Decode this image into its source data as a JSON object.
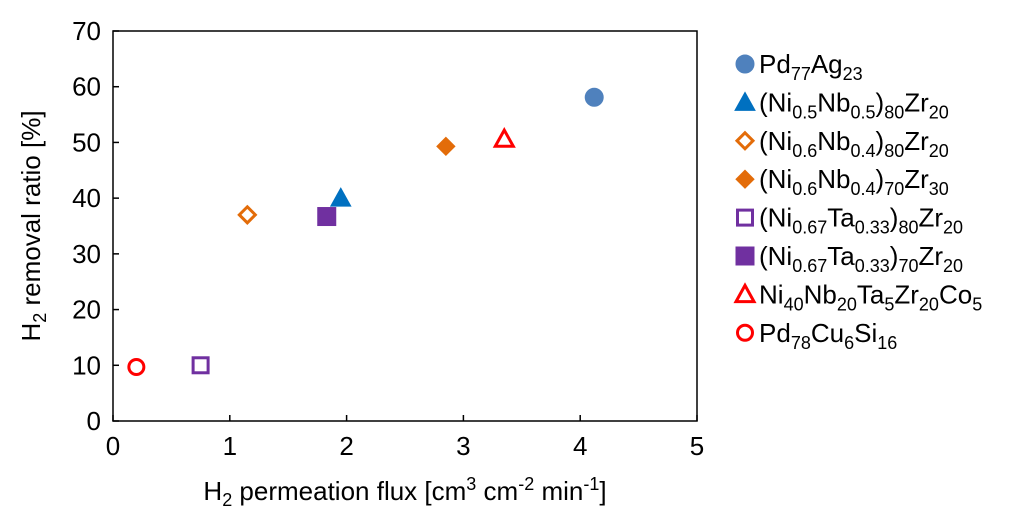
{
  "chart_data": {
    "type": "scatter",
    "title": "",
    "xlabel": {
      "base": "H",
      "sub": "2",
      "text1": " permeation flux [cm",
      "sup1": "3",
      "text2": " cm",
      "sup2": "-2",
      "text3": " min",
      "sup3": "-1",
      "text4": "]"
    },
    "ylabel": {
      "base": "H",
      "sub": "2",
      "text1": " removal ratio [%]"
    },
    "xlim": [
      0,
      5
    ],
    "ylim": [
      0,
      70
    ],
    "xticks": [
      "0",
      "1",
      "2",
      "3",
      "4",
      "5"
    ],
    "yticks": [
      "0",
      "10",
      "20",
      "30",
      "40",
      "50",
      "60",
      "70"
    ],
    "grid": false,
    "legend_position": "right",
    "series": [
      {
        "name_parts": [
          [
            "Pd",
            false
          ],
          [
            "77",
            true
          ],
          [
            "Ag",
            false
          ],
          [
            "23",
            true
          ]
        ],
        "marker": "circle",
        "filled": true,
        "color": "#4f81bd",
        "points": [
          [
            4.12,
            58.1
          ]
        ]
      },
      {
        "name_parts": [
          [
            "(Ni",
            false
          ],
          [
            "0.5",
            true
          ],
          [
            "Nb",
            false
          ],
          [
            "0.5",
            true
          ],
          [
            ")",
            false
          ],
          [
            "80",
            true
          ],
          [
            "Zr",
            false
          ],
          [
            "20",
            true
          ]
        ],
        "marker": "triangle",
        "filled": true,
        "color": "#0070c0",
        "points": [
          [
            1.95,
            40.0
          ]
        ]
      },
      {
        "name_parts": [
          [
            "(Ni",
            false
          ],
          [
            "0.6",
            true
          ],
          [
            "Nb",
            false
          ],
          [
            "0.4",
            true
          ],
          [
            ")",
            false
          ],
          [
            "80",
            true
          ],
          [
            "Zr",
            false
          ],
          [
            "20",
            true
          ]
        ],
        "marker": "diamond",
        "filled": false,
        "color": "#e36c09",
        "points": [
          [
            1.15,
            37.0
          ]
        ]
      },
      {
        "name_parts": [
          [
            "(Ni",
            false
          ],
          [
            "0.6",
            true
          ],
          [
            "Nb",
            false
          ],
          [
            "0.4",
            true
          ],
          [
            ")",
            false
          ],
          [
            "70",
            true
          ],
          [
            "Zr",
            false
          ],
          [
            "30",
            true
          ]
        ],
        "marker": "diamond",
        "filled": true,
        "color": "#e36c09",
        "points": [
          [
            2.85,
            49.3
          ]
        ]
      },
      {
        "name_parts": [
          [
            "(Ni",
            false
          ],
          [
            "0.67",
            true
          ],
          [
            "Ta",
            false
          ],
          [
            "0.33",
            true
          ],
          [
            ")",
            false
          ],
          [
            "80",
            true
          ],
          [
            "Zr",
            false
          ],
          [
            "20",
            true
          ]
        ],
        "marker": "square",
        "filled": false,
        "color": "#7030a0",
        "points": [
          [
            0.75,
            10.0
          ]
        ]
      },
      {
        "name_parts": [
          [
            "(Ni",
            false
          ],
          [
            "0.67",
            true
          ],
          [
            "Ta",
            false
          ],
          [
            "0.33",
            true
          ],
          [
            ")",
            false
          ],
          [
            "70",
            true
          ],
          [
            "Zr",
            false
          ],
          [
            "20",
            true
          ]
        ],
        "marker": "square",
        "filled": true,
        "color": "#7030a0",
        "points": [
          [
            1.83,
            36.7
          ]
        ]
      },
      {
        "name_parts": [
          [
            "Ni",
            false
          ],
          [
            "40",
            true
          ],
          [
            "Nb",
            false
          ],
          [
            "20",
            true
          ],
          [
            "Ta",
            false
          ],
          [
            "5",
            true
          ],
          [
            "Zr",
            false
          ],
          [
            "20",
            true
          ],
          [
            "Co",
            false
          ],
          [
            "5",
            true
          ]
        ],
        "marker": "triangle",
        "filled": false,
        "color": "#ff0000",
        "points": [
          [
            3.35,
            50.6
          ]
        ]
      },
      {
        "name_parts": [
          [
            "Pd",
            false
          ],
          [
            "78",
            true
          ],
          [
            "Cu",
            false
          ],
          [
            "6",
            true
          ],
          [
            "Si",
            false
          ],
          [
            "16",
            true
          ]
        ],
        "marker": "circle",
        "filled": false,
        "color": "#ff0000",
        "points": [
          [
            0.2,
            9.7
          ]
        ]
      }
    ]
  }
}
